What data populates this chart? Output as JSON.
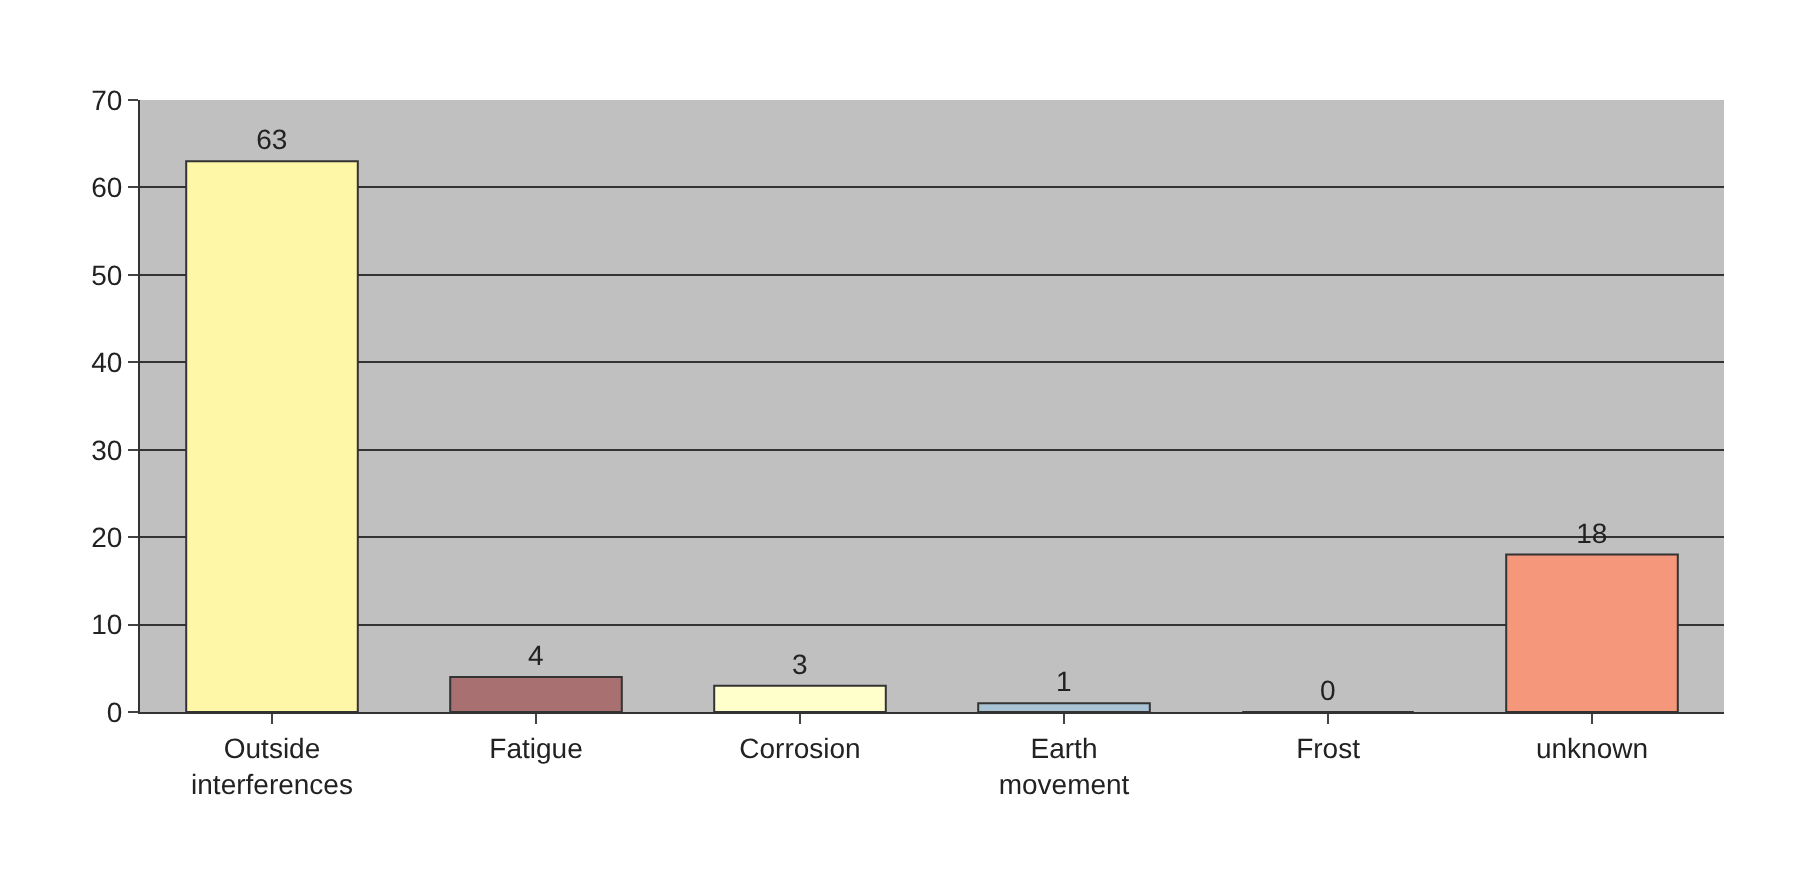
{
  "chart_data": {
    "type": "bar",
    "categories": [
      "Outside\ninterferences",
      "Fatigue",
      "Corrosion",
      "Earth\nmovement",
      "Frost",
      "unknown"
    ],
    "values": [
      63,
      4,
      3,
      1,
      0,
      18
    ],
    "colors": [
      "#fff7a8",
      "#a87070",
      "#ffffcc",
      "#a8c4d4",
      "#6b4a5e",
      "#f4977a"
    ],
    "ylim": [
      0,
      70
    ],
    "yticks": [
      0,
      10,
      20,
      30,
      40,
      50,
      60,
      70
    ],
    "grid": "y",
    "data_labels": true,
    "legend": false
  }
}
